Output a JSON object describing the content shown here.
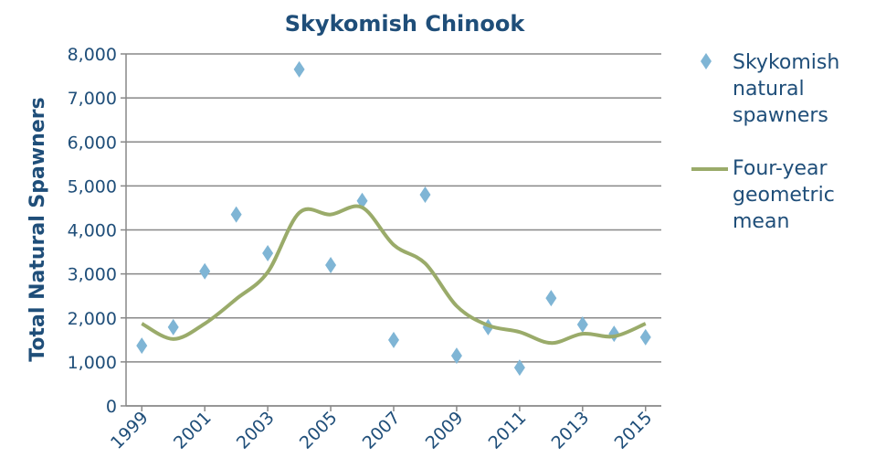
{
  "chart_data": {
    "type": "scatter",
    "title": "Skykomish Chinook",
    "y_label": "Total Natural Spawners",
    "x": [
      1999,
      2000,
      2001,
      2002,
      2003,
      2004,
      2005,
      2006,
      2007,
      2008,
      2009,
      2010,
      2011,
      2012,
      2013,
      2014,
      2015
    ],
    "xlim": [
      1998.5,
      2015.5
    ],
    "xticks": [
      1999,
      2001,
      2003,
      2005,
      2007,
      2009,
      2011,
      2013,
      2015
    ],
    "ylim": [
      0,
      8000
    ],
    "yticks": [
      0,
      {
        "value": 1000,
        "label": "1,000"
      },
      {
        "value": 2000,
        "label": "2,000"
      },
      {
        "value": 3000,
        "label": "3,000"
      },
      {
        "value": 4000,
        "label": "4,000"
      },
      {
        "value": 5000,
        "label": "5,000"
      },
      {
        "value": 6000,
        "label": "6,000"
      },
      {
        "value": 7000,
        "label": "7,000"
      },
      {
        "value": 8000,
        "label": "8,000"
      }
    ],
    "grid": true,
    "legend": "right",
    "series": [
      {
        "name": "Skykomish natural spawners",
        "type": "scatter",
        "color": "#7fb5d5",
        "values": [
          1370,
          1790,
          3060,
          4350,
          3470,
          7650,
          3200,
          4660,
          1500,
          4800,
          1140,
          1790,
          870,
          2450,
          1850,
          1640,
          1560
        ]
      },
      {
        "name": "Four-year geometric mean",
        "type": "line",
        "color": "#9aab6a",
        "values": [
          1870,
          1520,
          1870,
          2430,
          3040,
          4390,
          4350,
          4510,
          3660,
          3240,
          2270,
          1830,
          1680,
          1430,
          1640,
          1580,
          1870
        ]
      }
    ]
  }
}
